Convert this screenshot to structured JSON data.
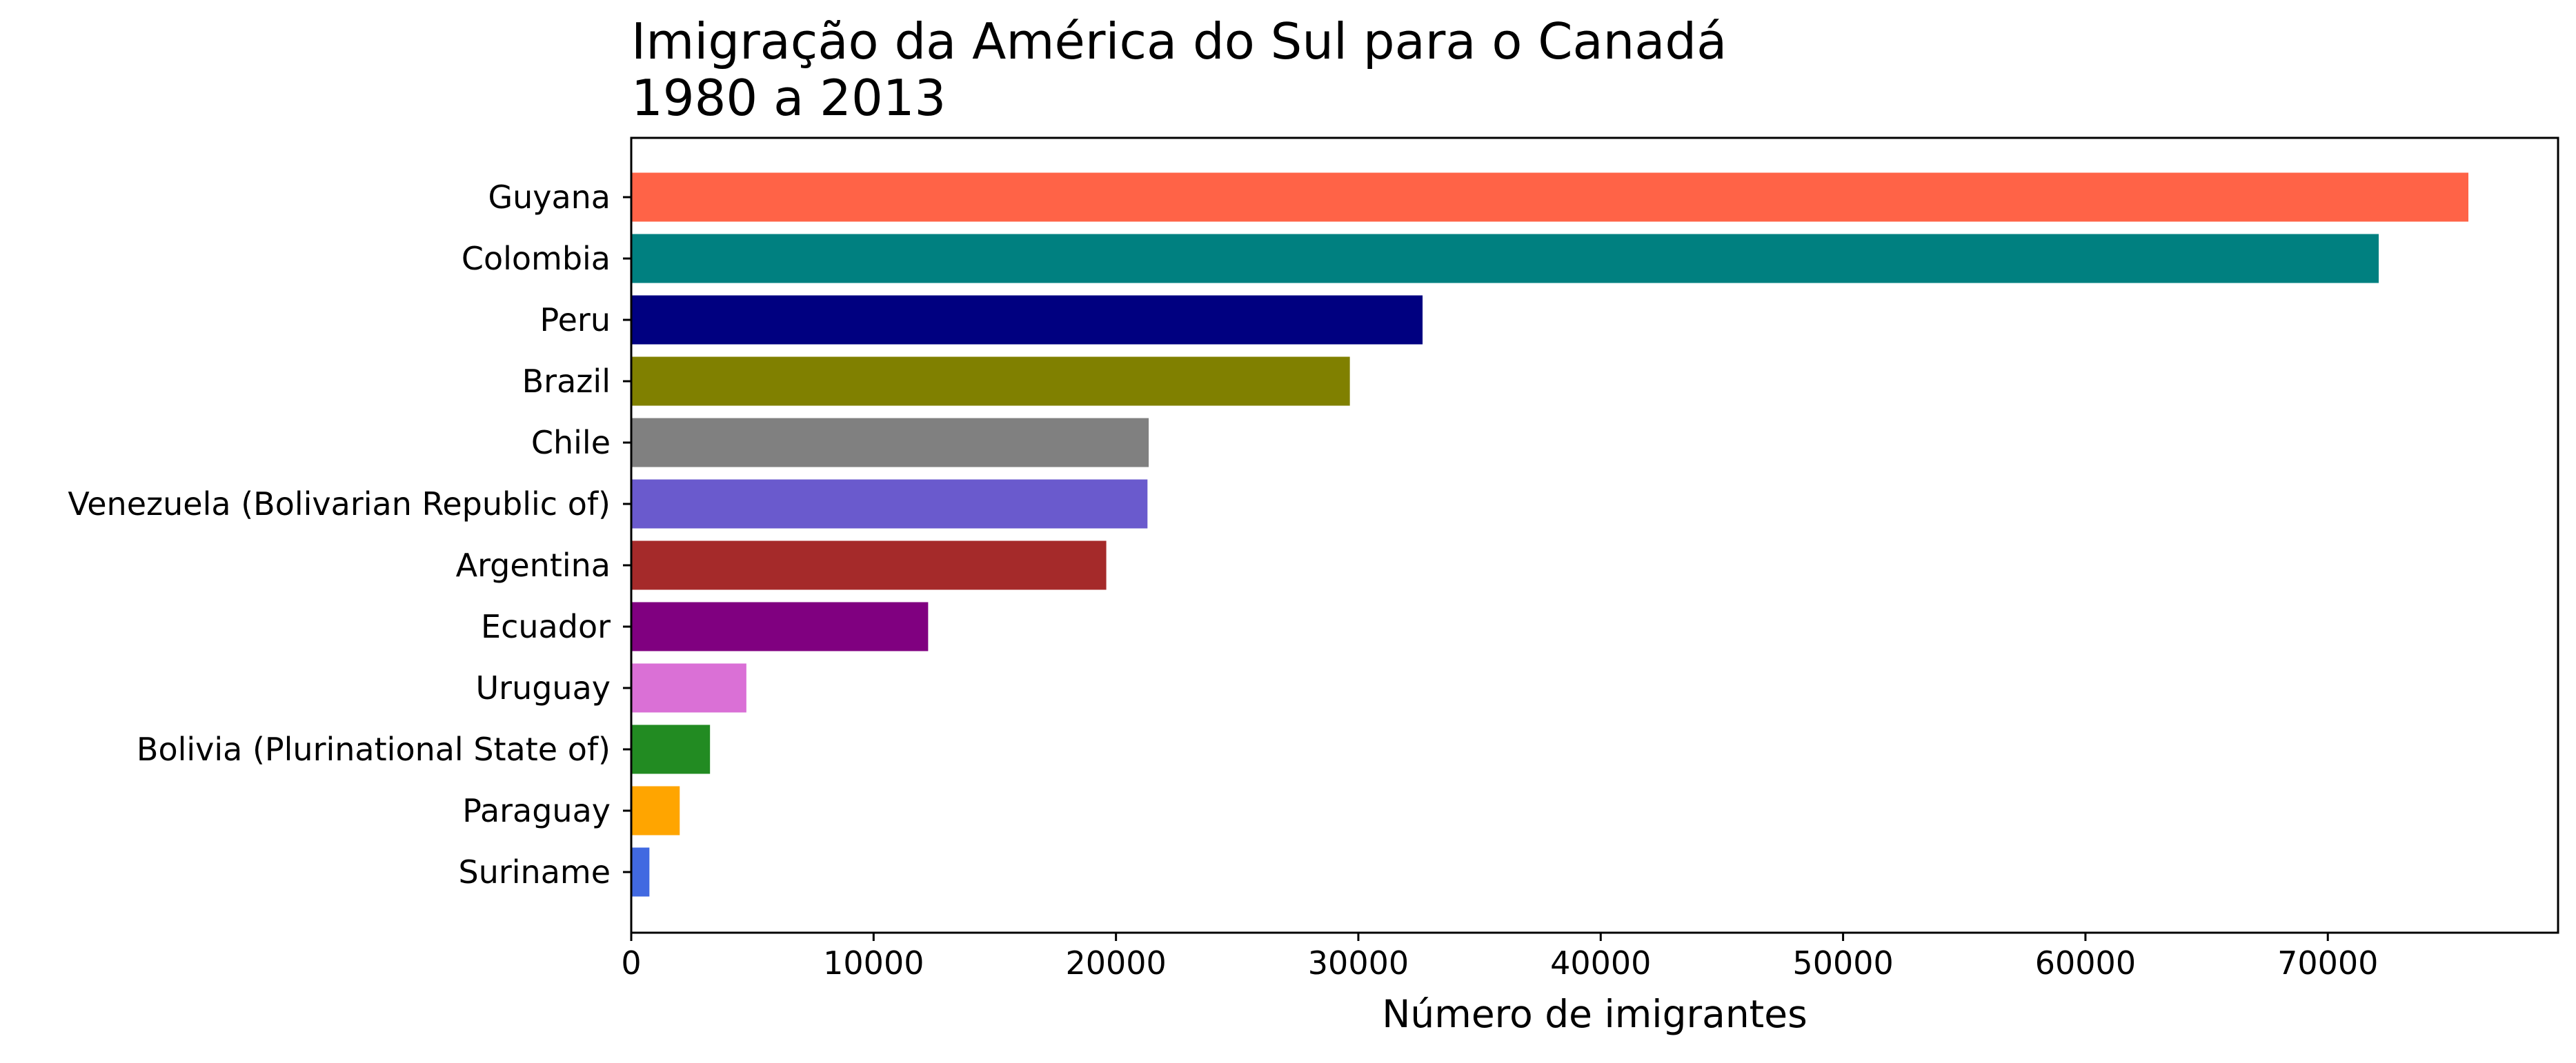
{
  "chart_data": {
    "type": "bar",
    "orientation": "horizontal",
    "title_lines": [
      "Imigração da América do Sul para o Canadá",
      "1980 a 2013"
    ],
    "xlabel": "Número de imigrantes",
    "ylabel": "",
    "xlim": [
      0,
      79500
    ],
    "xticks": [
      0,
      10000,
      20000,
      30000,
      40000,
      50000,
      60000,
      70000
    ],
    "xtick_labels": [
      "0",
      "10000",
      "20000",
      "30000",
      "40000",
      "50000",
      "60000",
      "70000"
    ],
    "grid": false,
    "categories": [
      "Guyana",
      "Colombia",
      "Peru",
      "Brazil",
      "Chile",
      "Venezuela (Bolivarian Republic of)",
      "Argentina",
      "Ecuador",
      "Uruguay",
      "Bolivia (Plurinational State of)",
      "Paraguay",
      "Suriname"
    ],
    "values": [
      75800,
      72100,
      32650,
      29650,
      21350,
      21300,
      19600,
      12250,
      4750,
      3250,
      2000,
      750
    ],
    "colors": [
      "#ff6347",
      "#008080",
      "#000080",
      "#808000",
      "#808080",
      "#6a5acd",
      "#a52a2a",
      "#800080",
      "#da70d6",
      "#228b22",
      "#ffa500",
      "#4169e1"
    ]
  }
}
